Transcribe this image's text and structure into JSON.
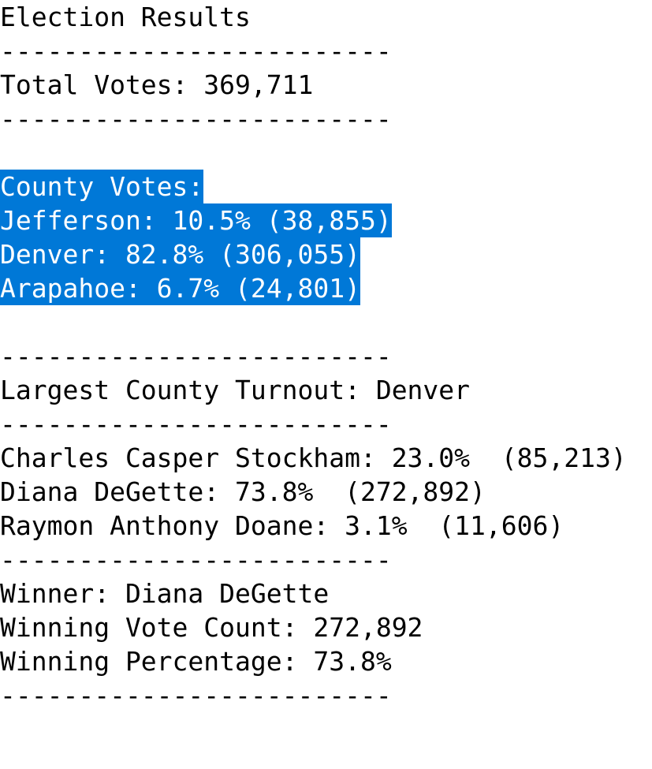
{
  "title": "Election Results",
  "separator": "-------------------------",
  "total_votes_line": "Total Votes: 369,711",
  "county": {
    "header": "County Votes:",
    "lines": [
      "Jefferson: 10.5% (38,855)",
      "Denver: 82.8% (306,055)",
      "Arapahoe: 6.7% (24,801)"
    ]
  },
  "largest_county_line": "Largest County Turnout: Denver",
  "candidates": [
    "Charles Casper Stockham: 23.0%  (85,213)",
    "Diana DeGette: 73.8%  (272,892)",
    "Raymon Anthony Doane: 3.1%  (11,606)"
  ],
  "winner": {
    "winner_line": "Winner: Diana DeGette",
    "count_line": "Winning Vote Count: 272,892",
    "percentage_line": "Winning Percentage: 73.8%"
  },
  "selection_color": "#0078d7"
}
